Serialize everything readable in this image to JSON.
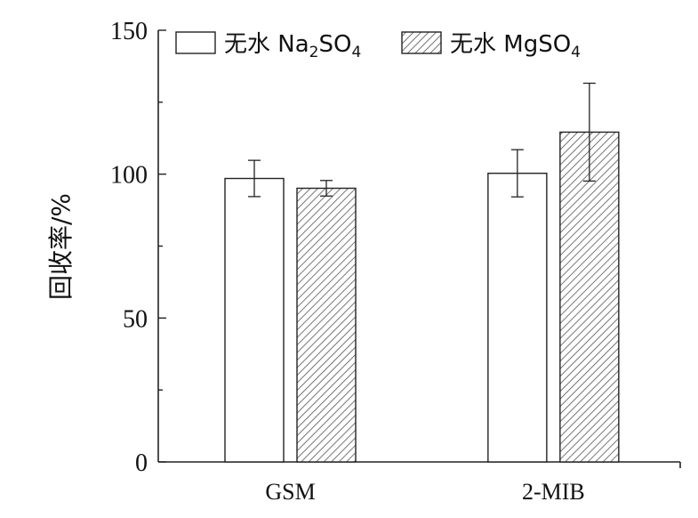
{
  "chart_data": {
    "type": "bar",
    "title": "",
    "xlabel": "",
    "ylabel": "回收率/%",
    "ylim": [
      0,
      150
    ],
    "yticks": [
      0,
      50,
      100,
      150
    ],
    "categories": [
      "GSM",
      "2-MIB"
    ],
    "series": [
      {
        "name": "无水 Na₂SO₄",
        "name_main": "无水 Na",
        "name_sub1": "2",
        "name_mid": "SO",
        "name_sub2": "4",
        "pattern": "empty",
        "values": [
          98.5,
          100.3
        ],
        "errors": [
          6.3,
          8.2
        ]
      },
      {
        "name": "无水 MgSO₄",
        "name_main": "无水 MgSO",
        "name_sub1": "4",
        "pattern": "hatched",
        "values": [
          95.1,
          114.6
        ],
        "errors": [
          2.7,
          17.0
        ]
      }
    ],
    "legend_position": "top",
    "grid": false
  }
}
